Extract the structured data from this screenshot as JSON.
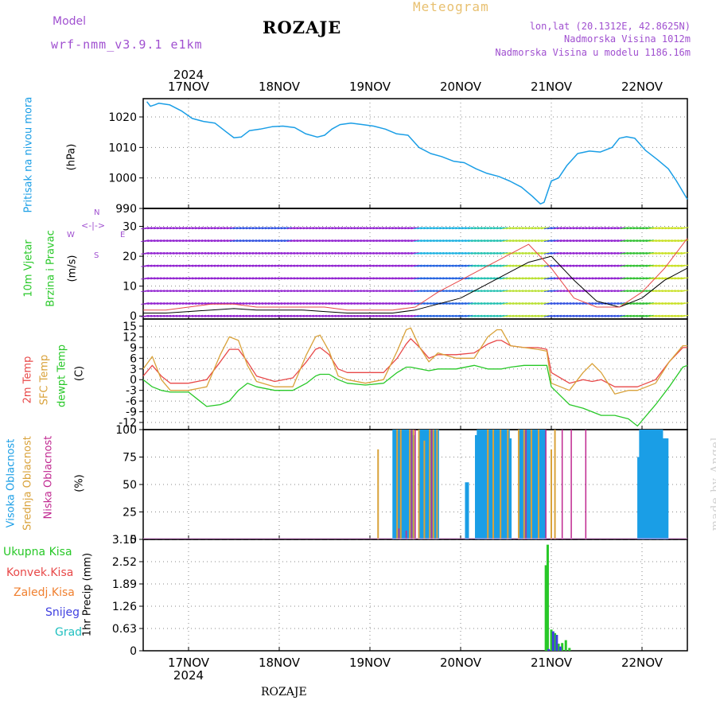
{
  "header": {
    "station": "ROZAJE",
    "meteogram_label": "Meteogram",
    "model_label": "Model",
    "model_name": "wrf-nmm_v3.9.1 e1km",
    "lonlat": "lon,lat (20.1312E, 42.8625N)",
    "elevation": "Nadmorska Visina 1012m",
    "model_elevation": "Nadmorska Visina u modelu 1186.16m"
  },
  "axis": {
    "year": "2024",
    "dates": [
      "17NOV",
      "18NOV",
      "19NOV",
      "20NOV",
      "21NOV",
      "22NOV"
    ]
  },
  "labels": {
    "pressure": [
      "Pritisak na nivou mora",
      "(hPa)"
    ],
    "wind": [
      "10m Vjetar",
      "Brzina i Pravac",
      "(m/s)"
    ],
    "wind_compass": [
      "N",
      "W",
      "E",
      "S"
    ],
    "temp": [
      "2m Temp",
      "SFC Temp",
      "dewpt Temp",
      "(C)"
    ],
    "cloud": [
      "Visoka Oblacnost",
      "Srednja Oblacnost",
      "Niska Oblacnost",
      "(%)"
    ],
    "precip_axis": "1hr Precip (mm)",
    "precip_legend": [
      "Ukupna Kisa",
      "Konvek.Kisa",
      "Zaledj.Kisa",
      "Snijeg",
      "Grad"
    ],
    "made_by": "made by Angel",
    "footer_station": "ROZAJE"
  },
  "colors": {
    "pressure": "#1a9ee6",
    "temp2m": "#e84848",
    "sfc": "#d9a23a",
    "dewpt": "#28c828",
    "cloud_high": "#1a9ee6",
    "cloud_mid": "#d9a23a",
    "cloud_low": "#c02890",
    "precip_total": "#28c828",
    "precip_conv": "#e84848",
    "precip_frz": "#f08030",
    "precip_snow": "#4040e0",
    "precip_hail": "#20c0c0",
    "wind_calm": "#9020d0",
    "model": "#a050d0"
  },
  "chart_data": [
    {
      "type": "line",
      "title": "Pritisak na nivou mora",
      "ylabel": "(hPa)",
      "ylim": [
        990,
        1026
      ],
      "yticks": [
        990,
        1000,
        1010,
        1020
      ],
      "x_days": [
        16.54,
        16.58,
        16.63,
        16.67,
        16.79,
        16.92,
        17.04,
        17.17,
        17.29,
        17.42,
        17.5,
        17.58,
        17.67,
        17.79,
        17.92,
        18.04,
        18.17,
        18.29,
        18.42,
        18.5,
        18.58,
        18.67,
        18.79,
        18.92,
        19.04,
        19.17,
        19.29,
        19.42,
        19.54,
        19.67,
        19.79,
        19.92,
        20.04,
        20.17,
        20.29,
        20.42,
        20.54,
        20.67,
        20.79,
        20.88,
        20.92,
        21.0,
        21.08,
        21.17,
        21.29,
        21.42,
        21.54,
        21.67,
        21.75,
        21.83,
        21.92,
        22.04,
        22.17,
        22.29,
        22.38,
        22.5
      ],
      "series": [
        {
          "name": "",
          "color": "#1a9ee6",
          "values": [
            1025,
            1023.5,
            1024,
            1024.5,
            1024,
            1022,
            1019.5,
            1018.5,
            1018,
            1015,
            1013.2,
            1013.4,
            1015.5,
            1016,
            1016.8,
            1017,
            1016.5,
            1014.5,
            1013.4,
            1014,
            1016,
            1017.5,
            1018,
            1017.5,
            1017,
            1016,
            1014.5,
            1014,
            1010,
            1008,
            1007,
            1005.5,
            1005,
            1003,
            1001.5,
            1000.5,
            999,
            997,
            994,
            991.5,
            992,
            999,
            1000,
            1004,
            1008,
            1008.8,
            1008.5,
            1010,
            1013,
            1013.5,
            1013,
            1009,
            1006,
            1003,
            999,
            993
          ]
        }
      ]
    },
    {
      "type": "line",
      "title": "10m Vjetar Brzina i Pravac",
      "ylabel": "(m/s)",
      "ylim": [
        -1,
        36
      ],
      "yticks": [
        0,
        10,
        20,
        30
      ],
      "x_days": [
        16.5,
        16.75,
        17.0,
        17.25,
        17.5,
        17.75,
        18.0,
        18.25,
        18.5,
        18.75,
        19.0,
        19.25,
        19.5,
        19.75,
        20.0,
        20.25,
        20.5,
        20.75,
        21.0,
        21.25,
        21.5,
        21.75,
        22.0,
        22.25,
        22.5
      ],
      "series": [
        {
          "name": "",
          "color": "#000000",
          "values": [
            1,
            1,
            1.5,
            2,
            2.5,
            2,
            2,
            2,
            1.5,
            1,
            1,
            1,
            2,
            4,
            6,
            10,
            14,
            18,
            20,
            12,
            5,
            3,
            6,
            12,
            16
          ]
        },
        {
          "name": "",
          "color": "#e84848",
          "values": [
            2,
            2,
            3,
            4,
            4,
            3,
            3,
            3,
            3,
            2,
            2,
            2,
            3,
            8,
            12,
            16,
            20,
            24,
            16,
            6,
            3,
            3,
            8,
            16,
            26
          ]
        }
      ]
    },
    {
      "type": "line",
      "title": "2m Temp / SFC Temp / dewpt Temp",
      "ylabel": "(C)",
      "ylim": [
        -14,
        17
      ],
      "yticks": [
        -12,
        -9,
        -6,
        -3,
        0,
        3,
        6,
        9,
        12,
        15
      ],
      "x_days": [
        16.5,
        16.6,
        16.7,
        16.8,
        17.0,
        17.2,
        17.35,
        17.45,
        17.55,
        17.65,
        17.75,
        17.95,
        18.15,
        18.3,
        18.4,
        18.45,
        18.55,
        18.65,
        18.75,
        18.95,
        19.15,
        19.3,
        19.4,
        19.45,
        19.55,
        19.65,
        19.75,
        19.95,
        20.15,
        20.3,
        20.4,
        20.45,
        20.55,
        20.7,
        20.85,
        20.95,
        21.0,
        21.2,
        21.35,
        21.45,
        21.55,
        21.7,
        21.85,
        21.95,
        22.15,
        22.3,
        22.45,
        22.5
      ],
      "series": [
        {
          "name": "",
          "color": "#e84848",
          "values": [
            1,
            4,
            1,
            -1,
            -1,
            0,
            5,
            8.5,
            8.5,
            5,
            1,
            -0.5,
            0.5,
            5,
            8.5,
            9,
            7,
            3,
            2,
            2,
            2,
            6,
            10,
            11.5,
            9,
            6,
            7,
            7,
            7.5,
            10,
            11,
            11,
            9.5,
            9,
            9,
            8.5,
            2,
            -1,
            0,
            -0.5,
            0,
            -2,
            -2,
            -2,
            0,
            5,
            9,
            9
          ]
        },
        {
          "name": "",
          "color": "#d9a23a",
          "values": [
            3,
            6.5,
            0,
            -3,
            -3,
            -2,
            7,
            12,
            11,
            4,
            -0.5,
            -2,
            -2,
            7,
            12,
            12.5,
            8,
            1,
            0,
            -1,
            0,
            8,
            14,
            14.5,
            9,
            5,
            7.5,
            6,
            6,
            12,
            14,
            14,
            9.5,
            9,
            8.5,
            8,
            -1,
            -3,
            2,
            4.5,
            2,
            -4,
            -3,
            -3,
            -1,
            5,
            9.5,
            9.5
          ]
        },
        {
          "name": "",
          "color": "#28c828",
          "values": [
            0,
            -2,
            -3,
            -3.5,
            -3.5,
            -7.5,
            -7,
            -6,
            -3,
            -1,
            -2,
            -3,
            -3,
            -1,
            1,
            1.5,
            1.5,
            0,
            -1,
            -1.5,
            -1,
            2,
            3.5,
            3.5,
            3,
            2.5,
            3,
            3,
            4,
            3,
            3,
            3,
            3.5,
            4,
            4,
            4,
            -2,
            -7,
            -8,
            -9,
            -10,
            -10,
            -11,
            -13,
            -7,
            -2,
            3.5,
            4
          ]
        }
      ]
    },
    {
      "type": "bar",
      "title": "Visoka / Srednja / Niska Oblacnost",
      "ylabel": "(%)",
      "ylim": [
        0,
        100
      ],
      "yticks": [
        0,
        25,
        50,
        75,
        100
      ],
      "series": [
        {
          "name": "",
          "color": "#1a9ee6",
          "x_days": [
            19.27,
            19.29,
            19.31,
            19.33,
            19.35,
            19.37,
            19.39,
            19.41,
            19.43,
            19.45,
            19.47,
            19.56,
            19.58,
            19.6,
            19.62,
            19.64,
            19.66,
            19.68,
            19.7,
            19.72,
            19.74,
            20.07,
            20.18,
            20.2,
            20.22,
            20.24,
            20.26,
            20.28,
            20.3,
            20.32,
            20.34,
            20.36,
            20.38,
            20.4,
            20.42,
            20.44,
            20.46,
            20.48,
            20.5,
            20.52,
            20.54,
            20.66,
            20.68,
            20.7,
            20.72,
            20.74,
            20.76,
            20.78,
            20.8,
            20.82,
            20.84,
            20.86,
            20.88,
            20.9,
            20.92,
            21.97,
            21.99,
            22.01,
            22.03,
            22.05,
            22.07,
            22.09,
            22.11,
            22.13,
            22.15,
            22.17,
            22.19,
            22.21,
            22.25,
            22.27
          ],
          "values": [
            100,
            100,
            100,
            100,
            100,
            100,
            100,
            100,
            100,
            100,
            95,
            100,
            100,
            100,
            100,
            100,
            92,
            100,
            100,
            100,
            100,
            52,
            95,
            100,
            100,
            100,
            100,
            100,
            100,
            100,
            100,
            100,
            100,
            100,
            100,
            100,
            100,
            100,
            100,
            100,
            92,
            100,
            100,
            100,
            100,
            100,
            100,
            100,
            100,
            100,
            100,
            100,
            100,
            100,
            100,
            75,
            100,
            100,
            100,
            100,
            100,
            100,
            100,
            100,
            100,
            100,
            100,
            100,
            92,
            92
          ]
        },
        {
          "name": "",
          "color": "#d9a23a",
          "x_days": [
            19.09,
            19.3,
            19.34,
            19.44,
            19.48,
            19.54,
            19.6,
            19.66,
            19.7,
            19.74,
            20.3,
            20.36,
            20.44,
            20.52,
            20.64,
            20.7,
            20.78,
            20.86,
            21.0,
            21.04
          ],
          "values": [
            82,
            100,
            100,
            100,
            100,
            100,
            90,
            100,
            100,
            100,
            100,
            100,
            100,
            100,
            100,
            100,
            100,
            100,
            82,
            100
          ]
        },
        {
          "name": "",
          "color": "#c02890",
          "x_days": [
            19.32,
            19.4,
            19.46,
            19.5,
            19.68,
            20.72,
            20.94,
            21.12,
            21.22,
            21.38
          ],
          "values": [
            10,
            8,
            100,
            100,
            100,
            100,
            100,
            100,
            100,
            100
          ]
        }
      ]
    },
    {
      "type": "bar",
      "title": "1hr Precip",
      "ylabel": "1hr Precip (mm)",
      "ylim": [
        0,
        3.15
      ],
      "yticks": [
        0,
        0.63,
        1.26,
        1.89,
        2.52,
        3.15
      ],
      "series": [
        {
          "name": "",
          "color": "#28c828",
          "x_days": [
            20.94,
            20.96,
            21.0,
            21.04,
            21.08,
            21.12,
            21.16,
            21.2
          ],
          "values": [
            2.42,
            3.0,
            0.6,
            0.5,
            0.2,
            0.22,
            0.3,
            0.08
          ]
        },
        {
          "name": "",
          "color": "#4040e0",
          "x_days": [
            20.97,
            21.02,
            21.06,
            21.1
          ],
          "values": [
            0.05,
            0.55,
            0.45,
            0.12
          ]
        }
      ]
    }
  ]
}
